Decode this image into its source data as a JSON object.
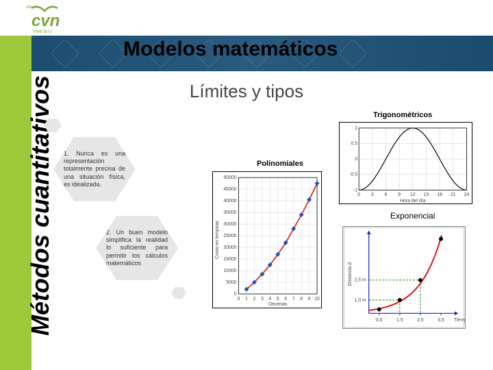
{
  "logo": {
    "top_text": "Vive lo",
    "main": "cvn",
    "sub": "Vive la U"
  },
  "banner_title": "Modelos matemáticos",
  "sidebar_title": "Métodos cuantitativos",
  "subtitle": "Límites y tipos",
  "hex1": {
    "text": "1. Nunca es una representación totalmente precisa de una situación física, es idealizada."
  },
  "hex2": {
    "text": "2. Un buen modelo simplifica la realidad lo suficiente para permitir los cálculos matemáticos"
  },
  "trig": {
    "title": "Trigonométricos",
    "xlabel": "Hora del día",
    "ylabel": "Ciclo",
    "ylim": [
      -1,
      1
    ],
    "yticks": [
      -1,
      -0.5,
      0,
      0.5,
      1
    ],
    "xlim": [
      0,
      24
    ],
    "xticks": [
      0,
      3,
      6,
      9,
      12,
      15,
      18,
      21,
      24
    ],
    "amplitude": 1,
    "period": 24,
    "phase": 6,
    "curve_color": "#000000",
    "grid_color": "#cccccc",
    "line_width": 1.2
  },
  "poly": {
    "title": "Polinomiales",
    "ylabel": "Costo en lempiras",
    "xlabel": "Decenas",
    "ylim": [
      0,
      50000
    ],
    "yticks": [
      0,
      5000,
      10000,
      15000,
      20000,
      25000,
      30000,
      35000,
      40000,
      45000,
      50000
    ],
    "xlim": [
      0,
      10
    ],
    "xticks": [
      0,
      1,
      2,
      3,
      4,
      5,
      6,
      7,
      8,
      9,
      10
    ],
    "points_x": [
      1,
      2,
      3,
      4,
      5,
      6,
      7,
      8,
      9,
      10
    ],
    "points_y": [
      2000,
      5000,
      8500,
      12500,
      17000,
      22000,
      28000,
      34000,
      40500,
      47500
    ],
    "curve_color": "#d62c2c",
    "marker_color": "#2050c0",
    "grid_color": "#cccccc",
    "line_width": 1.8,
    "marker_size": 2.5
  },
  "exp": {
    "title": "Exponencial",
    "ylabel": "Distancia d",
    "xlabel": "Tiempo",
    "ylim": [
      0,
      6
    ],
    "yticks_labeled": [
      1.0,
      2.5
    ],
    "xlim": [
      0,
      4
    ],
    "xticks": [
      0.5,
      1.5,
      2.5,
      3.5
    ],
    "points_x": [
      0.5,
      1.5,
      2.5,
      3.5
    ],
    "points_y": [
      0.3,
      1.0,
      2.5,
      5.6
    ],
    "curve_color": "#e01010",
    "marker_fill": "#000000",
    "guide_color": "#1a8a1a",
    "guide_dash": "3,2",
    "line_width": 2,
    "marker_size": 3,
    "axis_color": "#1020c0",
    "ylabel_1": "1,0 m",
    "ylabel_2": "2,5 m"
  },
  "colors": {
    "sidebar_green": "#9fc93a",
    "banner_blue": "#1a4a6e",
    "hex_fill": "#e6e6e6",
    "background": "#ffffff"
  }
}
